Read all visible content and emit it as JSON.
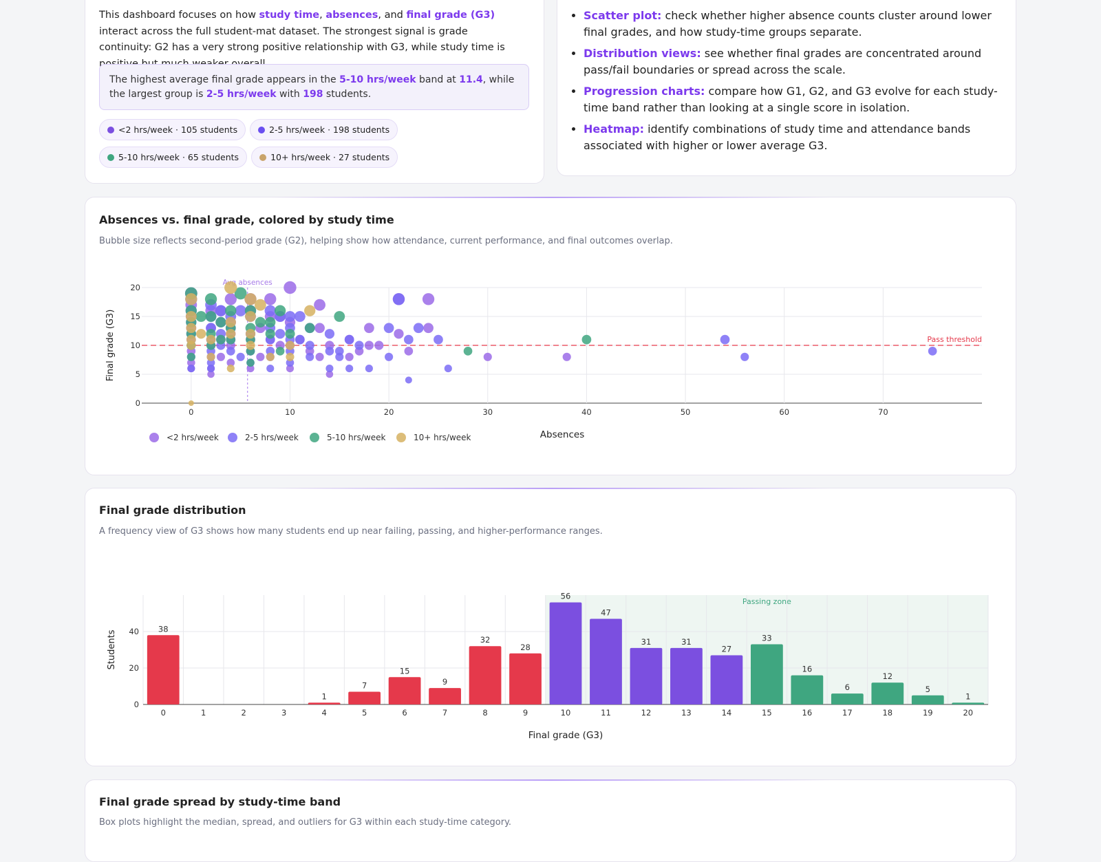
{
  "intro": {
    "text_1": "This dashboard focuses on how ",
    "term_study_time": "study time",
    "sep_1": ", ",
    "term_absences": "absences",
    "sep_2": ", and ",
    "term_final_grade": "final grade (G3)",
    "text_2": " interact across the full student-mat dataset. The strongest signal is grade continuity: G2 has a very strong positive relationship with G3, while study time is positive but much weaker overall."
  },
  "callout": {
    "text_1": "The highest average final grade appears in the ",
    "top_band": "5-10 hrs/week",
    "text_2": " band at ",
    "top_avg": "11.4",
    "text_3": ", while the largest group is ",
    "largest_band": "2-5 hrs/week",
    "text_4": " with ",
    "largest_count": "198",
    "text_5": " students."
  },
  "chips": [
    {
      "label": "<2 hrs/week · 105 students",
      "color": "#7b4fe0"
    },
    {
      "label": "2-5 hrs/week · 198 students",
      "color": "#6a4ff0"
    },
    {
      "label": "5-10 hrs/week · 65 students",
      "color": "#3fa680"
    },
    {
      "label": "10+ hrs/week · 27 students",
      "color": "#c9a46b"
    }
  ],
  "plots": [
    {
      "term": "Scatter plot:",
      "text": " check whether higher absence counts cluster around lower final grades, and how study-time groups separate."
    },
    {
      "term": "Distribution views:",
      "text": " see whether final grades are concentrated around pass/fail boundaries or spread across the scale."
    },
    {
      "term": "Progression charts:",
      "text": " compare how G1, G2, and G3 evolve for each study-time band rather than looking at a single score in isolation."
    },
    {
      "term": "Heatmap:",
      "text": " identify combinations of study time and attendance bands associated with higher or lower average G3."
    }
  ],
  "scatter_card": {
    "title": "Absences vs. final grade, colored by study time",
    "subtitle": "Bubble size reflects second-period grade (G2), helping show how attendance, current performance, and final outcomes overlap."
  },
  "hist_card": {
    "title": "Final grade distribution",
    "subtitle": "A frequency view of G3 shows how many students end up near failing, passing, and higher-performance ranges."
  },
  "box_card": {
    "title": "Final grade spread by study-time band",
    "subtitle": "Box plots highlight the median, spread, and outliers for G3 within each study-time category."
  },
  "colors": {
    "lt2": "#9b6be8",
    "b2to5": "#7b6cf6",
    "b5to10": "#3fa680",
    "b10p": "#d6b261",
    "fail": "#e5394b",
    "mid": "#7b4fe0",
    "pass": "#3fa680",
    "pass_zone": "#eef6f2"
  },
  "chart_data": [
    {
      "type": "scatter",
      "xlabel": "Absences",
      "ylabel": "Final grade (G3)",
      "xlim": [
        -5,
        80
      ],
      "ylim": [
        0,
        20
      ],
      "xticks": [
        0,
        10,
        20,
        30,
        40,
        50,
        60,
        70
      ],
      "yticks": [
        0,
        5,
        10,
        15,
        20
      ],
      "legend_position": "bottom",
      "annotations": [
        {
          "text": "Avg absences",
          "x": 5.7
        },
        {
          "text": "Pass threshold",
          "y": 10
        }
      ],
      "series": [
        {
          "name": "<2 hrs/week",
          "points": [
            [
              0,
              19
            ],
            [
              0,
              17
            ],
            [
              0,
              15
            ],
            [
              0,
              13
            ],
            [
              0,
              11
            ],
            [
              0,
              9
            ],
            [
              0,
              7
            ],
            [
              0,
              6
            ],
            [
              2,
              16
            ],
            [
              2,
              13
            ],
            [
              2,
              10
            ],
            [
              2,
              8
            ],
            [
              2,
              6
            ],
            [
              2,
              5
            ],
            [
              3,
              16
            ],
            [
              3,
              11
            ],
            [
              3,
              8
            ],
            [
              4,
              18
            ],
            [
              4,
              14
            ],
            [
              4,
              12
            ],
            [
              4,
              10
            ],
            [
              4,
              7
            ],
            [
              6,
              18
            ],
            [
              6,
              16
            ],
            [
              6,
              11
            ],
            [
              6,
              9
            ],
            [
              6,
              6
            ],
            [
              7,
              13
            ],
            [
              7,
              8
            ],
            [
              8,
              18
            ],
            [
              8,
              15
            ],
            [
              8,
              11
            ],
            [
              8,
              8
            ],
            [
              9,
              15
            ],
            [
              9,
              10
            ],
            [
              10,
              20
            ],
            [
              10,
              14
            ],
            [
              10,
              10
            ],
            [
              10,
              6
            ],
            [
              11,
              11
            ],
            [
              12,
              9
            ],
            [
              13,
              17
            ],
            [
              13,
              13
            ],
            [
              13,
              8
            ],
            [
              14,
              10
            ],
            [
              14,
              5
            ],
            [
              16,
              11
            ],
            [
              16,
              8
            ],
            [
              17,
              9
            ],
            [
              18,
              13
            ],
            [
              18,
              10
            ],
            [
              19,
              10
            ],
            [
              21,
              18
            ],
            [
              21,
              12
            ],
            [
              22,
              9
            ],
            [
              24,
              18
            ],
            [
              24,
              13
            ],
            [
              30,
              8
            ],
            [
              38,
              8
            ]
          ]
        },
        {
          "name": "2-5 hrs/week",
          "points": [
            [
              0,
              18
            ],
            [
              0,
              16
            ],
            [
              0,
              14
            ],
            [
              0,
              12
            ],
            [
              0,
              10
            ],
            [
              0,
              8
            ],
            [
              0,
              6
            ],
            [
              2,
              17
            ],
            [
              2,
              15
            ],
            [
              2,
              13
            ],
            [
              2,
              11
            ],
            [
              2,
              9
            ],
            [
              2,
              7
            ],
            [
              2,
              6
            ],
            [
              3,
              16
            ],
            [
              3,
              14
            ],
            [
              3,
              12
            ],
            [
              3,
              10
            ],
            [
              4,
              15
            ],
            [
              4,
              13
            ],
            [
              4,
              11
            ],
            [
              4,
              9
            ],
            [
              5,
              16
            ],
            [
              5,
              8
            ],
            [
              6,
              15
            ],
            [
              6,
              12
            ],
            [
              6,
              9
            ],
            [
              6,
              7
            ],
            [
              8,
              16
            ],
            [
              8,
              13
            ],
            [
              8,
              11
            ],
            [
              8,
              9
            ],
            [
              8,
              6
            ],
            [
              9,
              15
            ],
            [
              9,
              12
            ],
            [
              10,
              15
            ],
            [
              10,
              13
            ],
            [
              10,
              11
            ],
            [
              10,
              9
            ],
            [
              10,
              7
            ],
            [
              11,
              15
            ],
            [
              11,
              11
            ],
            [
              12,
              13
            ],
            [
              12,
              10
            ],
            [
              12,
              8
            ],
            [
              14,
              12
            ],
            [
              14,
              9
            ],
            [
              14,
              6
            ],
            [
              15,
              9
            ],
            [
              15,
              8
            ],
            [
              16,
              11
            ],
            [
              16,
              6
            ],
            [
              17,
              10
            ],
            [
              18,
              6
            ],
            [
              20,
              13
            ],
            [
              20,
              8
            ],
            [
              21,
              18
            ],
            [
              22,
              11
            ],
            [
              22,
              4
            ],
            [
              23,
              13
            ],
            [
              25,
              11
            ],
            [
              26,
              6
            ],
            [
              54,
              11
            ],
            [
              56,
              8
            ],
            [
              75,
              9
            ]
          ]
        },
        {
          "name": "5-10 hrs/week",
          "points": [
            [
              0,
              19
            ],
            [
              0,
              16
            ],
            [
              0,
              14
            ],
            [
              0,
              12
            ],
            [
              0,
              10
            ],
            [
              0,
              8
            ],
            [
              1,
              15
            ],
            [
              2,
              18
            ],
            [
              2,
              15
            ],
            [
              2,
              12
            ],
            [
              2,
              10
            ],
            [
              3,
              14
            ],
            [
              3,
              11
            ],
            [
              4,
              16
            ],
            [
              4,
              13
            ],
            [
              4,
              11
            ],
            [
              5,
              19
            ],
            [
              6,
              16
            ],
            [
              6,
              13
            ],
            [
              6,
              11
            ],
            [
              6,
              9
            ],
            [
              6,
              7
            ],
            [
              7,
              14
            ],
            [
              8,
              14
            ],
            [
              8,
              12
            ],
            [
              9,
              16
            ],
            [
              9,
              9
            ],
            [
              10,
              12
            ],
            [
              12,
              13
            ],
            [
              15,
              15
            ],
            [
              28,
              9
            ],
            [
              40,
              11
            ]
          ]
        },
        {
          "name": "10+ hrs/week",
          "points": [
            [
              0,
              18
            ],
            [
              0,
              15
            ],
            [
              0,
              13
            ],
            [
              0,
              11
            ],
            [
              0,
              10
            ],
            [
              0,
              0
            ],
            [
              1,
              12
            ],
            [
              2,
              11
            ],
            [
              2,
              8
            ],
            [
              4,
              20
            ],
            [
              4,
              14
            ],
            [
              4,
              12
            ],
            [
              4,
              6
            ],
            [
              6,
              18
            ],
            [
              6,
              15
            ],
            [
              6,
              12
            ],
            [
              6,
              10
            ],
            [
              7,
              17
            ],
            [
              8,
              8
            ],
            [
              10,
              10
            ],
            [
              10,
              8
            ],
            [
              12,
              16
            ]
          ]
        }
      ]
    },
    {
      "type": "bar",
      "xlabel": "Final grade (G3)",
      "ylabel": "Students",
      "ylim": [
        0,
        60
      ],
      "yticks": [
        0,
        20,
        40
      ],
      "categories": [
        0,
        1,
        2,
        3,
        4,
        5,
        6,
        7,
        8,
        9,
        10,
        11,
        12,
        13,
        14,
        15,
        16,
        17,
        18,
        19,
        20
      ],
      "values": [
        38,
        0,
        0,
        0,
        1,
        7,
        15,
        9,
        32,
        28,
        56,
        47,
        31,
        31,
        27,
        33,
        16,
        6,
        12,
        5,
        1
      ],
      "data_labels": [
        "38",
        "",
        "",
        "",
        "1",
        "7",
        "15",
        "9",
        "32",
        "28",
        "56",
        "47",
        "31",
        "31",
        "27",
        "33",
        "16",
        "6",
        "12",
        "5",
        "1"
      ],
      "annotations": [
        {
          "text": "Passing zone",
          "x_from": 10,
          "x_to": 20
        }
      ]
    }
  ]
}
